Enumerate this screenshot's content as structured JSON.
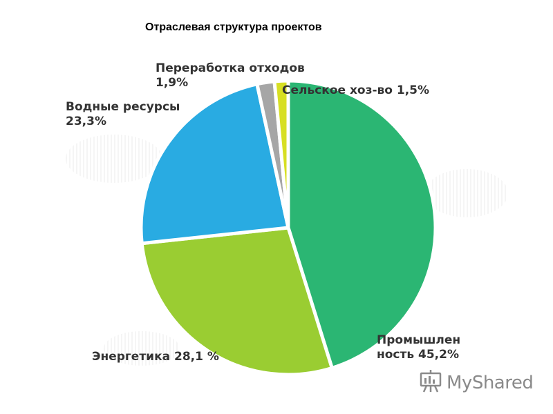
{
  "title": "Отраслевая структура проектов",
  "chart_data": {
    "type": "pie",
    "title": "Отраслевая структура проектов",
    "slices": [
      {
        "label_line1": "Промышлен",
        "label_line2": "ность 45,2%",
        "name": "Промышленность",
        "value": 45.2,
        "color": "#2bb673"
      },
      {
        "label_line1": "Энергетика 28,1 %",
        "label_line2": "",
        "name": "Энергетика",
        "value": 28.1,
        "color": "#9acd32"
      },
      {
        "label_line1": "Водные ресурсы",
        "label_line2": "23,3%",
        "name": "Водные ресурсы",
        "value": 23.3,
        "color": "#29abe2"
      },
      {
        "label_line1": "Переработка отходов",
        "label_line2": "1,9%",
        "name": "Переработка отходов",
        "value": 1.9,
        "color": "#a6a6a6"
      },
      {
        "label_line1": "Сельское хоз-во 1,5%",
        "label_line2": "",
        "name": "Сельское хоз-во",
        "value": 1.5,
        "color": "#d7df23"
      }
    ],
    "start": "12 o'clock",
    "direction": "clockwise"
  },
  "watermark": {
    "text": "MyShared",
    "icon": "presentation-board-icon",
    "color": "#8a8a8a"
  }
}
